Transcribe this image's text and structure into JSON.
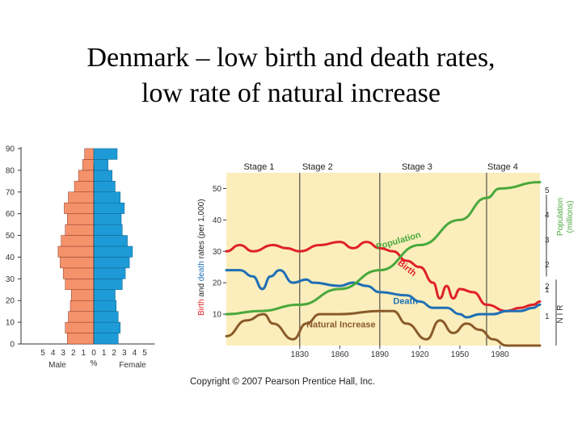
{
  "slide": {
    "title_line1": "Denmark – low birth and death rates,",
    "title_line2": "low rate of natural increase"
  },
  "colors": {
    "male": "#f4926c",
    "female": "#1e9bd7",
    "panel_bg": "#fbeebc",
    "birth": "#e0202a",
    "death": "#1f6fb5",
    "population": "#4aa83c",
    "natural_increase": "#8a5a2a",
    "axis_label_green": "#4aa83c"
  },
  "copyright": "Copyright © 2007 Pearson Prentice Hall, Inc.",
  "chart_data": [
    {
      "type": "bar",
      "subtype": "population-pyramid",
      "age_ticks": [
        "0",
        "10",
        "20",
        "30",
        "40",
        "50",
        "60",
        "70",
        "80",
        "90"
      ],
      "x_ticks": [
        "5",
        "4",
        "3",
        "2",
        "1",
        "0",
        "1",
        "2",
        "3",
        "4",
        "5"
      ],
      "xlabel_left": "Male",
      "xlabel_center": "%",
      "xlabel_right": "Female",
      "xlim": [
        -5,
        5
      ],
      "age_groups": [
        0,
        5,
        10,
        15,
        20,
        25,
        30,
        35,
        40,
        45,
        50,
        55,
        60,
        65,
        70,
        75,
        80,
        85
      ],
      "series": [
        {
          "name": "Male",
          "values": [
            2.6,
            2.8,
            2.5,
            2.3,
            2.2,
            2.8,
            3.0,
            3.3,
            3.5,
            3.2,
            2.8,
            2.6,
            2.9,
            2.5,
            1.9,
            1.5,
            1.1,
            0.9
          ]
        },
        {
          "name": "Female",
          "values": [
            2.4,
            2.6,
            2.4,
            2.2,
            2.1,
            2.8,
            3.1,
            3.5,
            3.8,
            3.3,
            2.8,
            2.7,
            3.0,
            2.6,
            2.1,
            1.8,
            1.4,
            2.3
          ]
        }
      ]
    },
    {
      "type": "line",
      "stages": [
        "Stage 1",
        "Stage 2",
        "Stage 3",
        "Stage 4"
      ],
      "stage_boundaries": [
        1830,
        1890,
        1970
      ],
      "xlim": [
        1775,
        2010
      ],
      "x_ticks": [
        "1830",
        "1860",
        "1890",
        "1920",
        "1950",
        "1980"
      ],
      "ylim": [
        0,
        55
      ],
      "y_ticks_left": [
        "10",
        "20",
        "30",
        "40",
        "50"
      ],
      "ylabel_left_parts": [
        "Birth",
        " and ",
        "death",
        " rates (per 1,000)"
      ],
      "ylabel_right_top": "Population",
      "ylabel_right_top2": "(millions)",
      "y_ticks_right_top": [
        "1",
        "2",
        "3",
        "4",
        "5"
      ],
      "ylabel_right_bottom": "N I R",
      "y_ticks_right_bottom": [
        "1",
        "2"
      ],
      "series": [
        {
          "name": "Birth",
          "x": [
            1775,
            1785,
            1795,
            1810,
            1820,
            1830,
            1845,
            1860,
            1870,
            1880,
            1890,
            1900,
            1910,
            1920,
            1930,
            1935,
            1940,
            1945,
            1950,
            1960,
            1970,
            1985,
            1995,
            2005,
            2010
          ],
          "y": [
            30,
            32,
            30,
            32,
            31,
            30,
            32,
            33,
            31,
            33,
            31,
            30,
            27,
            25,
            20,
            15,
            19,
            15,
            18,
            17,
            13,
            11,
            12,
            13,
            14
          ]
        },
        {
          "name": "Death",
          "x": [
            1775,
            1785,
            1795,
            1802,
            1808,
            1815,
            1825,
            1835,
            1840,
            1860,
            1870,
            1880,
            1890,
            1910,
            1920,
            1930,
            1940,
            1950,
            1955,
            1965,
            1975,
            1985,
            1995,
            2005,
            2010
          ],
          "y": [
            24,
            24,
            22,
            18,
            22,
            24,
            20,
            21,
            20,
            19,
            20,
            19,
            17,
            16,
            14,
            12,
            12,
            10,
            9,
            10,
            10,
            11,
            11,
            12,
            13
          ]
        },
        {
          "name": "Population",
          "x": [
            1775,
            1800,
            1830,
            1860,
            1890,
            1920,
            1950,
            1970,
            1980,
            2010
          ],
          "y": [
            10,
            11,
            13,
            18,
            24,
            32,
            40,
            47,
            50,
            52
          ]
        },
        {
          "name": "Natural Increase",
          "x": [
            1775,
            1790,
            1803,
            1810,
            1825,
            1835,
            1845,
            1860,
            1890,
            1900,
            1910,
            1925,
            1935,
            1945,
            1955,
            1965,
            1975,
            1985,
            2000,
            2010
          ],
          "y": [
            3,
            8,
            10,
            7,
            2,
            7,
            10,
            10,
            11,
            11,
            7,
            2,
            8,
            4,
            7,
            5,
            2,
            0,
            0,
            0
          ]
        }
      ],
      "curve_labels": {
        "population": "Population",
        "birth": "Birth",
        "death": "Death",
        "natural_increase": "Natural Increase"
      }
    }
  ]
}
